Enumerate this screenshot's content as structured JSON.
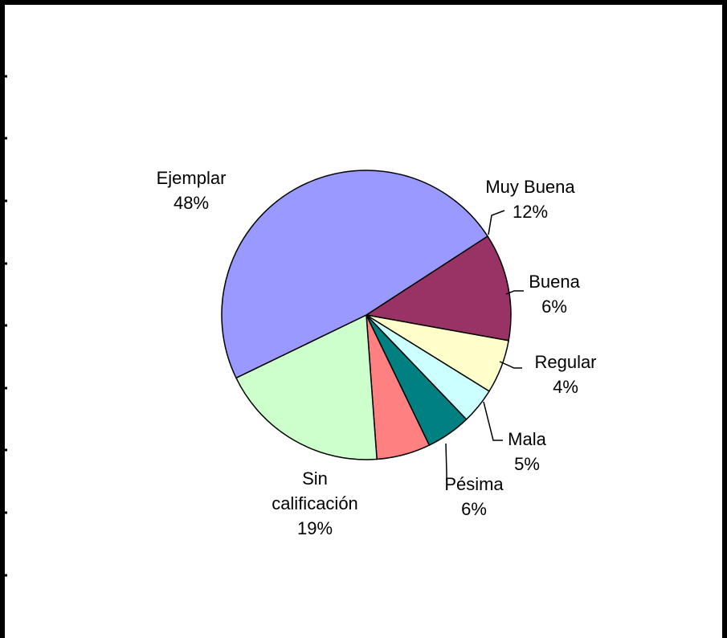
{
  "chart_data": {
    "type": "pie",
    "title": "",
    "slices": [
      {
        "label": [
          "Muy Buena"
        ],
        "percent_label": "12%",
        "value": 12,
        "color": "#993366"
      },
      {
        "label": [
          "Buena"
        ],
        "percent_label": "6%",
        "value": 6,
        "color": "#FFFFCC"
      },
      {
        "label": [
          "Regular"
        ],
        "percent_label": "4%",
        "value": 4,
        "color": "#CCFFFF"
      },
      {
        "label": [
          "Mala"
        ],
        "percent_label": "5%",
        "value": 5,
        "color": "#008080"
      },
      {
        "label": [
          "Pésima"
        ],
        "percent_label": "6%",
        "value": 6,
        "color": "#FF8080"
      },
      {
        "label": [
          "Sin",
          "calificación"
        ],
        "percent_label": "19%",
        "value": 19,
        "color": "#CCFFCC"
      },
      {
        "label": [
          "Ejemplar"
        ],
        "percent_label": "48%",
        "value": 48,
        "color": "#9999FF"
      }
    ]
  }
}
